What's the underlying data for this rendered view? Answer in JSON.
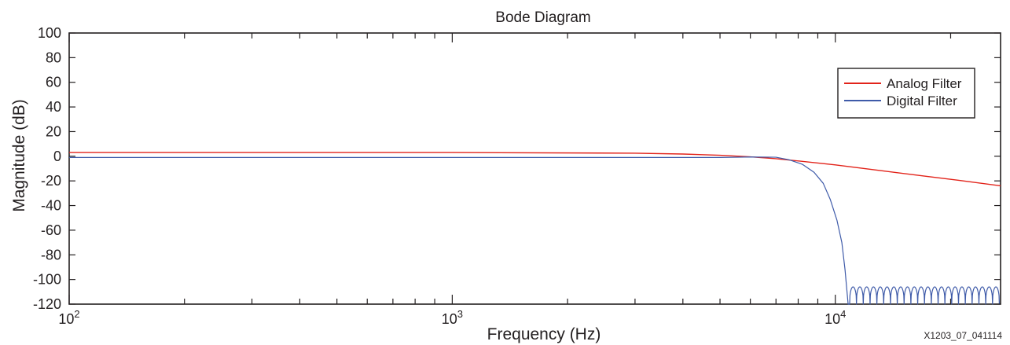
{
  "figure_id": "X1203_07_041114",
  "chart_data": {
    "type": "line",
    "title": "Bode Diagram",
    "xlabel": "Frequency (Hz)",
    "ylabel": "Magnitude (dB)",
    "xscale": "log",
    "xlim": [
      100,
      27000
    ],
    "ylim": [
      -120,
      100
    ],
    "xticks": [
      {
        "base": "10",
        "exp": "2",
        "value": 100
      },
      {
        "base": "10",
        "exp": "3",
        "value": 1000
      },
      {
        "base": "10",
        "exp": "4",
        "value": 10000
      }
    ],
    "yticks": [
      "100",
      "80",
      "60",
      "40",
      "20",
      "0",
      "-20",
      "-40",
      "-60",
      "-80",
      "-100",
      "-120"
    ],
    "grid": false,
    "legend_position": "top-right",
    "series": [
      {
        "name": "Analog Filter",
        "color": "#e2231a",
        "points": [
          [
            100,
            3
          ],
          [
            1000,
            3
          ],
          [
            3000,
            2.5
          ],
          [
            4000,
            1.8
          ],
          [
            5000,
            0.8
          ],
          [
            6000,
            -0.5
          ],
          [
            7000,
            -2
          ],
          [
            8000,
            -3.8
          ],
          [
            10000,
            -7
          ],
          [
            13000,
            -11.5
          ],
          [
            17000,
            -16
          ],
          [
            21000,
            -19.5
          ],
          [
            27000,
            -24
          ]
        ]
      },
      {
        "name": "Digital Filter",
        "color": "#3f5ba9",
        "points": [
          [
            100,
            -1
          ],
          [
            1000,
            -1
          ],
          [
            3000,
            -1
          ],
          [
            5000,
            -1
          ],
          [
            6000,
            -0.6
          ],
          [
            7000,
            -0.8
          ],
          [
            7600,
            -3
          ],
          [
            8200,
            -6.5
          ],
          [
            8800,
            -13
          ],
          [
            9300,
            -22
          ],
          [
            9700,
            -35
          ],
          [
            10100,
            -52
          ],
          [
            10400,
            -70
          ],
          [
            10600,
            -92
          ],
          [
            10800,
            -120
          ]
        ],
        "stopband": {
          "start": 10900,
          "end": 26800,
          "ripple_top": -106,
          "ripple_floor": -120,
          "lobes": 22
        }
      }
    ]
  }
}
